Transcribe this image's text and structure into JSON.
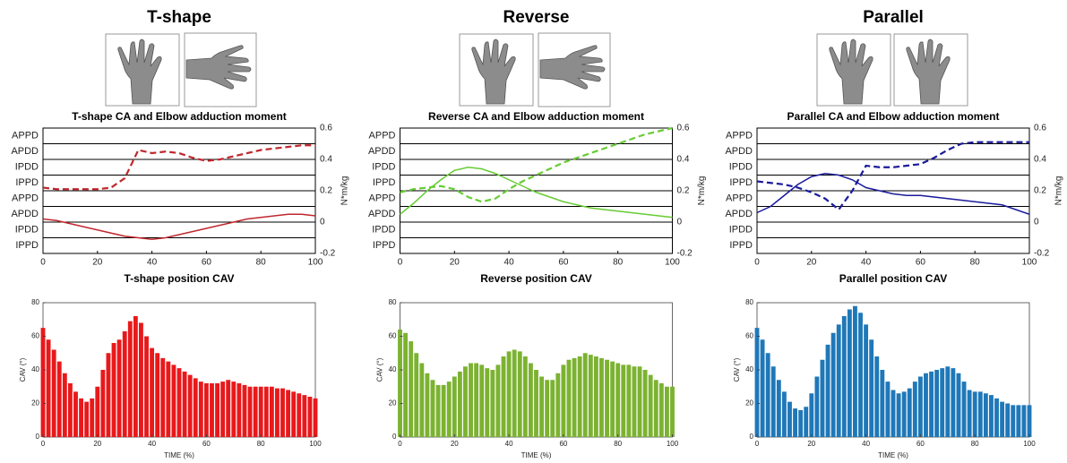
{
  "chart_data": [
    {
      "type": "line",
      "heading": "T-shape",
      "title": "T-shape CA and Elbow adduction moment",
      "categories_y": [
        "APPD",
        "APDD",
        "IPDD",
        "IPPD",
        "APPD",
        "APDD",
        "IPDD",
        "IPPD"
      ],
      "y2label": "N*m/kg",
      "xlim": [
        0,
        100
      ],
      "xticks": [
        0,
        20,
        40,
        60,
        80,
        100
      ],
      "y2lim": [
        -0.2,
        0.6
      ],
      "y2ticks": [
        -0.2,
        0,
        0.2,
        0.4,
        0.6
      ],
      "x": [
        0,
        5,
        10,
        15,
        20,
        25,
        30,
        35,
        40,
        45,
        50,
        55,
        60,
        65,
        70,
        75,
        80,
        85,
        90,
        95,
        100
      ],
      "series": [
        {
          "style": "dashed",
          "axis": "y2",
          "color": "#c0272d",
          "values": [
            0.22,
            0.21,
            0.21,
            0.21,
            0.21,
            0.22,
            0.28,
            0.46,
            0.44,
            0.45,
            0.44,
            0.41,
            0.39,
            0.4,
            0.42,
            0.44,
            0.46,
            0.47,
            0.48,
            0.49,
            0.49
          ]
        },
        {
          "style": "solid",
          "axis": "y2",
          "color": "#c0272d",
          "values": [
            0.02,
            0.01,
            -0.01,
            -0.03,
            -0.05,
            -0.07,
            -0.09,
            -0.1,
            -0.11,
            -0.1,
            -0.08,
            -0.06,
            -0.04,
            -0.02,
            0,
            0.02,
            0.03,
            0.04,
            0.05,
            0.05,
            0.04
          ]
        }
      ]
    },
    {
      "type": "bar",
      "title": "T-shape position CAV",
      "ylabel": "CAV (°)",
      "xlabel": "TIME (%)",
      "color": "#e8191b",
      "xlim": [
        0,
        100
      ],
      "xticks": [
        0,
        20,
        40,
        60,
        80,
        100
      ],
      "ylim": [
        0,
        80
      ],
      "yticks": [
        0,
        20,
        40,
        60,
        80
      ],
      "x": [
        0,
        2,
        4,
        6,
        8,
        10,
        12,
        14,
        16,
        18,
        20,
        22,
        24,
        26,
        28,
        30,
        32,
        34,
        36,
        38,
        40,
        42,
        44,
        46,
        48,
        50,
        52,
        54,
        56,
        58,
        60,
        62,
        64,
        66,
        68,
        70,
        72,
        74,
        76,
        78,
        80,
        82,
        84,
        86,
        88,
        90,
        92,
        94,
        96,
        98,
        100
      ],
      "values": [
        65,
        58,
        52,
        45,
        38,
        32,
        27,
        23,
        21,
        23,
        30,
        40,
        50,
        56,
        58,
        63,
        69,
        72,
        68,
        60,
        53,
        50,
        47,
        45,
        43,
        41,
        39,
        37,
        35,
        33,
        32,
        32,
        32,
        33,
        34,
        33,
        32,
        31,
        30,
        30,
        30,
        30,
        30,
        29,
        29,
        28,
        27,
        26,
        25,
        24,
        23
      ]
    },
    {
      "type": "line",
      "heading": "Reverse",
      "title": "Reverse CA and Elbow adduction moment",
      "categories_y": [
        "APPD",
        "APDD",
        "IPDD",
        "IPPD",
        "APPD",
        "APDD",
        "IPDD",
        "IPPD"
      ],
      "y2label": "N*m/kg",
      "xlim": [
        0,
        100
      ],
      "xticks": [
        0,
        20,
        40,
        60,
        80,
        100
      ],
      "y2lim": [
        -0.2,
        0.6
      ],
      "y2ticks": [
        -0.2,
        0,
        0.2,
        0.4,
        0.6
      ],
      "x": [
        0,
        5,
        10,
        15,
        20,
        25,
        30,
        35,
        40,
        45,
        50,
        55,
        60,
        65,
        70,
        75,
        80,
        85,
        90,
        95,
        100
      ],
      "series": [
        {
          "style": "dashed",
          "axis": "y2",
          "color": "#66cc33",
          "values": [
            0.19,
            0.21,
            0.22,
            0.23,
            0.21,
            0.16,
            0.13,
            0.15,
            0.21,
            0.26,
            0.3,
            0.34,
            0.38,
            0.41,
            0.44,
            0.47,
            0.5,
            0.53,
            0.56,
            0.58,
            0.6
          ]
        },
        {
          "style": "solid",
          "axis": "y2",
          "color": "#66cc33",
          "values": [
            0.05,
            0.12,
            0.2,
            0.27,
            0.33,
            0.35,
            0.34,
            0.31,
            0.27,
            0.23,
            0.19,
            0.16,
            0.13,
            0.11,
            0.09,
            0.08,
            0.07,
            0.06,
            0.05,
            0.04,
            0.03
          ]
        }
      ]
    },
    {
      "type": "bar",
      "title": "Reverse position CAV",
      "ylabel": "CAV (°)",
      "xlabel": "TIME (%)",
      "color": "#7cb231",
      "xlim": [
        0,
        100
      ],
      "xticks": [
        0,
        20,
        40,
        60,
        80,
        100
      ],
      "ylim": [
        0,
        80
      ],
      "yticks": [
        0,
        20,
        40,
        60,
        80
      ],
      "x": [
        0,
        2,
        4,
        6,
        8,
        10,
        12,
        14,
        16,
        18,
        20,
        22,
        24,
        26,
        28,
        30,
        32,
        34,
        36,
        38,
        40,
        42,
        44,
        46,
        48,
        50,
        52,
        54,
        56,
        58,
        60,
        62,
        64,
        66,
        68,
        70,
        72,
        74,
        76,
        78,
        80,
        82,
        84,
        86,
        88,
        90,
        92,
        94,
        96,
        98,
        100
      ],
      "values": [
        64,
        62,
        57,
        50,
        44,
        38,
        34,
        31,
        31,
        33,
        36,
        39,
        42,
        44,
        44,
        43,
        41,
        40,
        43,
        48,
        51,
        52,
        51,
        48,
        44,
        40,
        36,
        34,
        34,
        38,
        43,
        46,
        47,
        48,
        50,
        49,
        48,
        47,
        46,
        45,
        44,
        43,
        43,
        42,
        42,
        40,
        37,
        34,
        32,
        30,
        30
      ]
    },
    {
      "type": "line",
      "heading": "Parallel",
      "title": "Parallel CA and Elbow adduction moment",
      "categories_y": [
        "APPD",
        "APDD",
        "IPDD",
        "IPPD",
        "APPD",
        "APDD",
        "IPDD",
        "IPPD"
      ],
      "y2label": "N*m/kg",
      "xlim": [
        0,
        100
      ],
      "xticks": [
        0,
        20,
        40,
        60,
        80,
        100
      ],
      "y2lim": [
        -0.2,
        0.6
      ],
      "y2ticks": [
        -0.2,
        0,
        0.2,
        0.4,
        0.6
      ],
      "x": [
        0,
        5,
        10,
        15,
        20,
        25,
        30,
        35,
        40,
        45,
        50,
        55,
        60,
        65,
        70,
        75,
        80,
        85,
        90,
        95,
        100
      ],
      "series": [
        {
          "style": "dashed",
          "axis": "y2",
          "color": "#1a1a9c",
          "values": [
            0.26,
            0.25,
            0.24,
            0.22,
            0.19,
            0.15,
            0.08,
            0.2,
            0.36,
            0.35,
            0.35,
            0.36,
            0.37,
            0.41,
            0.46,
            0.5,
            0.51,
            0.51,
            0.51,
            0.51,
            0.51
          ]
        },
        {
          "style": "solid",
          "axis": "y2",
          "color": "#1a1a9c",
          "values": [
            0.06,
            0.1,
            0.17,
            0.24,
            0.29,
            0.31,
            0.3,
            0.27,
            0.22,
            0.2,
            0.18,
            0.17,
            0.17,
            0.16,
            0.15,
            0.14,
            0.13,
            0.12,
            0.11,
            0.08,
            0.05
          ]
        }
      ]
    },
    {
      "type": "bar",
      "title": "Parallel position CAV",
      "ylabel": "CAV (°)",
      "xlabel": "TIME (%)",
      "color": "#1f78b8",
      "xlim": [
        0,
        100
      ],
      "xticks": [
        0,
        20,
        40,
        60,
        80,
        100
      ],
      "ylim": [
        0,
        80
      ],
      "yticks": [
        0,
        20,
        40,
        60,
        80
      ],
      "x": [
        0,
        2,
        4,
        6,
        8,
        10,
        12,
        14,
        16,
        18,
        20,
        22,
        24,
        26,
        28,
        30,
        32,
        34,
        36,
        38,
        40,
        42,
        44,
        46,
        48,
        50,
        52,
        54,
        56,
        58,
        60,
        62,
        64,
        66,
        68,
        70,
        72,
        74,
        76,
        78,
        80,
        82,
        84,
        86,
        88,
        90,
        92,
        94,
        96,
        98,
        100
      ],
      "values": [
        65,
        58,
        50,
        42,
        34,
        27,
        21,
        17,
        16,
        18,
        26,
        36,
        46,
        55,
        62,
        67,
        72,
        76,
        78,
        74,
        67,
        58,
        48,
        40,
        33,
        28,
        26,
        27,
        29,
        33,
        36,
        38,
        39,
        40,
        41,
        42,
        41,
        38,
        33,
        28,
        27,
        27,
        26,
        25,
        23,
        21,
        20,
        19,
        19,
        19,
        19
      ]
    }
  ]
}
